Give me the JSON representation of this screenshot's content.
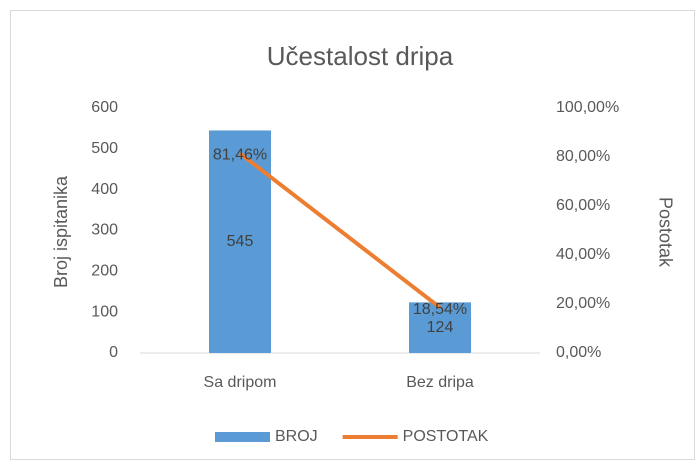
{
  "chart_data": {
    "type": "combo",
    "title": "Učestalost dripa",
    "y_label": "Broj ispitanika",
    "y2_label": "Postotak",
    "categories": [
      "Sa dripom",
      "Bez dripa"
    ],
    "series": [
      {
        "name": "BROJ",
        "type": "bar",
        "color": "#5b9bd5",
        "values": [
          545,
          124
        ]
      },
      {
        "name": "POSTOTAK",
        "type": "line",
        "axis": "y2",
        "color": "#ed7d31",
        "values": [
          81.46,
          18.54
        ],
        "value_labels": [
          "81,46%",
          "18,54%"
        ]
      }
    ],
    "ylim": [
      0,
      600
    ],
    "yticks": [
      0,
      100,
      200,
      300,
      400,
      500,
      600
    ],
    "y2lim": [
      0,
      100
    ],
    "y2ticks": [
      {
        "value": 0,
        "label": "0,00%"
      },
      {
        "value": 20,
        "label": "20,00%"
      },
      {
        "value": 40,
        "label": "40,00%"
      },
      {
        "value": 60,
        "label": "60,00%"
      },
      {
        "value": 80,
        "label": "80,00%"
      },
      {
        "value": 100,
        "label": "100,00%"
      }
    ],
    "grid": false,
    "legend": "bottom"
  }
}
